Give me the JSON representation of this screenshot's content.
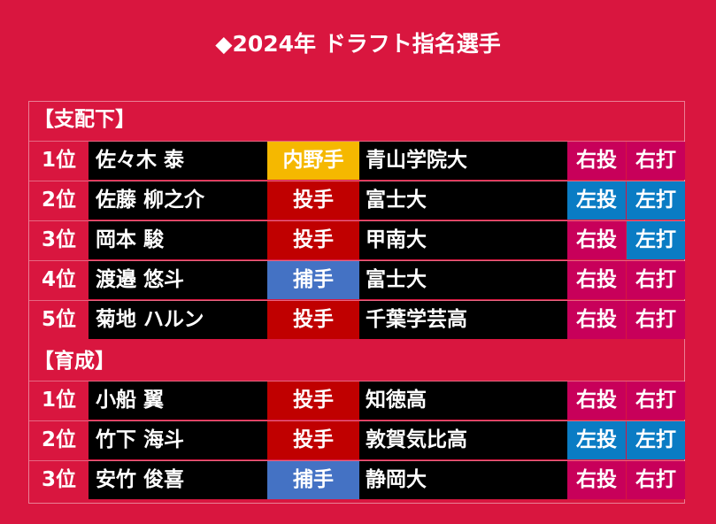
{
  "title": "◆2024年 ドラフト指名選手",
  "colors": {
    "background": "#d9163f",
    "infielder": "#f5b800",
    "pitcher": "#c00000",
    "catcher": "#4472c4",
    "right": "#c8005a",
    "left": "#0a7cc4",
    "cell_dark": "#000000"
  },
  "sections": [
    {
      "label": "【支配下】",
      "rows": [
        {
          "rank": "1位",
          "name": "佐々木 泰",
          "position": "内野手",
          "position_type": "infielder",
          "school": "青山学院大",
          "throws": "右投",
          "bats": "右打"
        },
        {
          "rank": "2位",
          "name": "佐藤 柳之介",
          "position": "投手",
          "position_type": "pitcher",
          "school": "富士大",
          "throws": "左投",
          "bats": "左打"
        },
        {
          "rank": "3位",
          "name": "岡本 駿",
          "position": "投手",
          "position_type": "pitcher",
          "school": "甲南大",
          "throws": "右投",
          "bats": "左打"
        },
        {
          "rank": "4位",
          "name": "渡邉 悠斗",
          "position": "捕手",
          "position_type": "catcher",
          "school": "富士大",
          "throws": "右投",
          "bats": "右打"
        },
        {
          "rank": "5位",
          "name": "菊地 ハルン",
          "position": "投手",
          "position_type": "pitcher",
          "school": "千葉学芸高",
          "throws": "右投",
          "bats": "右打"
        }
      ]
    },
    {
      "label": "【育成】",
      "rows": [
        {
          "rank": "1位",
          "name": "小船 翼",
          "position": "投手",
          "position_type": "pitcher",
          "school": "知徳高",
          "throws": "右投",
          "bats": "右打"
        },
        {
          "rank": "2位",
          "name": "竹下 海斗",
          "position": "投手",
          "position_type": "pitcher",
          "school": "敦賀気比高",
          "throws": "左投",
          "bats": "左打"
        },
        {
          "rank": "3位",
          "name": "安竹 俊喜",
          "position": "捕手",
          "position_type": "catcher",
          "school": "静岡大",
          "throws": "右投",
          "bats": "右打"
        }
      ]
    }
  ]
}
